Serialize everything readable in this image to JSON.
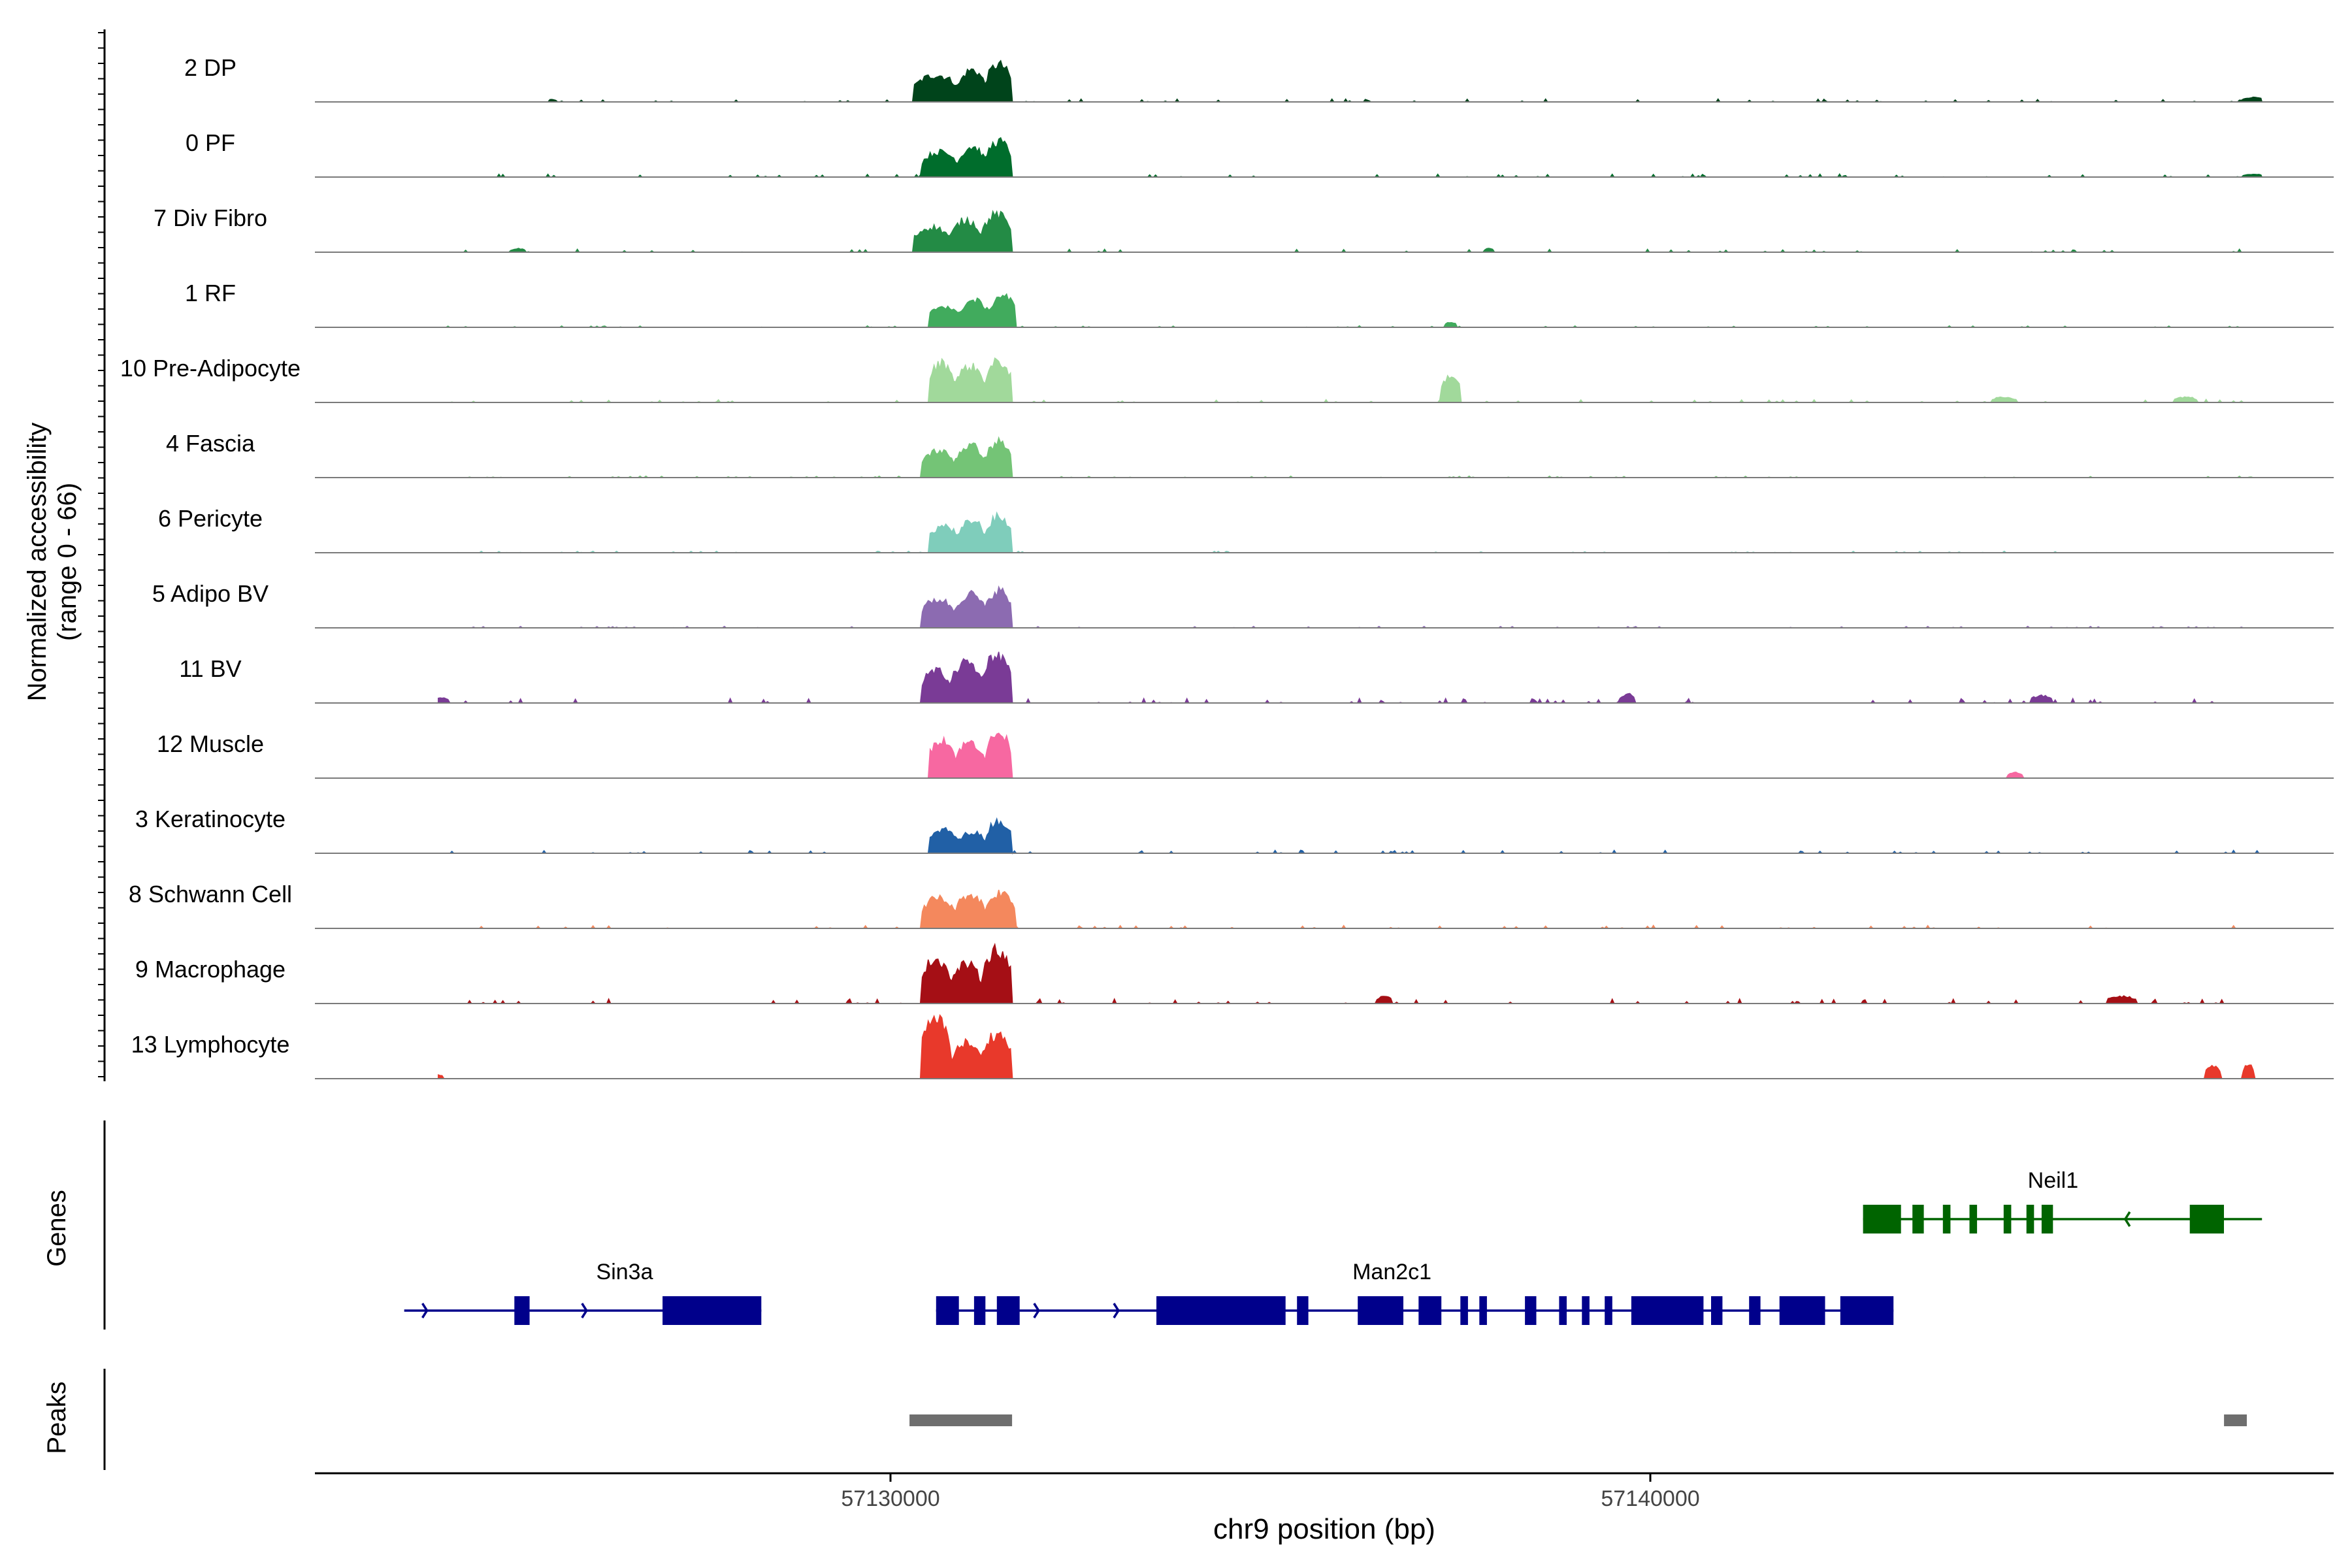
{
  "chart_data": {
    "type": "area",
    "title": "",
    "region_chromosome": "chr9",
    "x_range": [
      57122500,
      57148500
    ],
    "xlabel": "chr9 position (bp)",
    "x_ticks": [
      57130000,
      57140000
    ],
    "x_tick_labels": [
      "57130000",
      "57140000"
    ],
    "ylabel_line1": "Normalized accessibility",
    "ylabel_line2": "(range 0 - 66)",
    "y_range": [
      0,
      66
    ],
    "tracks": [
      {
        "name": "2 DP",
        "color": "#00441b",
        "baseline": 2,
        "peaks": [
          [
            57130300,
            57130900,
            30
          ],
          [
            57130900,
            57131250,
            36
          ],
          [
            57131250,
            57131600,
            42
          ],
          [
            57125500,
            57125600,
            3
          ],
          [
            57147800,
            57148100,
            5
          ]
        ]
      },
      {
        "name": "0 PF",
        "color": "#006d2c",
        "baseline": 2,
        "peaks": [
          [
            57130400,
            57130900,
            28
          ],
          [
            57130900,
            57131250,
            34
          ],
          [
            57131250,
            57131600,
            40
          ],
          [
            57147800,
            57148100,
            3
          ]
        ]
      },
      {
        "name": "7 Div Fibro",
        "color": "#238b45",
        "baseline": 2,
        "peaks": [
          [
            57130300,
            57130800,
            28
          ],
          [
            57130800,
            57131200,
            36
          ],
          [
            57131200,
            57131600,
            42
          ],
          [
            57125000,
            57125200,
            4
          ],
          [
            57137800,
            57137950,
            4
          ]
        ]
      },
      {
        "name": "1 RF",
        "color": "#41ab5d",
        "baseline": 1,
        "peaks": [
          [
            57130500,
            57130900,
            24
          ],
          [
            57130900,
            57131300,
            30
          ],
          [
            57131300,
            57131650,
            36
          ],
          [
            57137300,
            57137450,
            6
          ]
        ]
      },
      {
        "name": "10 Pre-Adipocyte",
        "color": "#a1d99b",
        "baseline": 2,
        "peaks": [
          [
            57130500,
            57130850,
            44
          ],
          [
            57130850,
            57131250,
            40
          ],
          [
            57131250,
            57131600,
            46
          ],
          [
            57137250,
            57137500,
            30
          ],
          [
            57144500,
            57144800,
            6
          ],
          [
            57146900,
            57147200,
            6
          ]
        ]
      },
      {
        "name": "4 Fascia",
        "color": "#74c476",
        "baseline": 1,
        "peaks": [
          [
            57130400,
            57130850,
            30
          ],
          [
            57130850,
            57131250,
            36
          ],
          [
            57131250,
            57131600,
            40
          ]
        ]
      },
      {
        "name": "6 Pericyte",
        "color": "#7fcdbb",
        "baseline": 1,
        "peaks": [
          [
            57130500,
            57130900,
            30
          ],
          [
            57130900,
            57131250,
            36
          ],
          [
            57131250,
            57131600,
            40
          ]
        ]
      },
      {
        "name": "5 Adipo BV",
        "color": "#8c6bb1",
        "baseline": 1,
        "peaks": [
          [
            57130400,
            57130850,
            32
          ],
          [
            57130850,
            57131250,
            38
          ],
          [
            57131250,
            57131600,
            42
          ]
        ]
      },
      {
        "name": "11 BV",
        "color": "#7a3b96",
        "baseline": 3,
        "peaks": [
          [
            57130400,
            57130800,
            36
          ],
          [
            57130800,
            57131200,
            46
          ],
          [
            57131200,
            57131600,
            54
          ],
          [
            57124000,
            57124200,
            6
          ],
          [
            57139600,
            57139800,
            10
          ],
          [
            57145000,
            57145300,
            8
          ]
        ]
      },
      {
        "name": "12 Muscle",
        "color": "#f768a1",
        "baseline": 0,
        "peaks": [
          [
            57130500,
            57130850,
            44
          ],
          [
            57130850,
            57131250,
            40
          ],
          [
            57131250,
            57131600,
            50
          ],
          [
            57144700,
            57144900,
            6
          ]
        ]
      },
      {
        "name": "3 Keratinocyte",
        "color": "#2160a6",
        "baseline": 2,
        "peaks": [
          [
            57130500,
            57130900,
            26
          ],
          [
            57130900,
            57131250,
            24
          ],
          [
            57131250,
            57131600,
            36
          ]
        ]
      },
      {
        "name": "8 Schwann Cell",
        "color": "#f4885d",
        "baseline": 2,
        "peaks": [
          [
            57130400,
            57130850,
            34
          ],
          [
            57130850,
            57131250,
            38
          ],
          [
            57131250,
            57131650,
            40
          ]
        ]
      },
      {
        "name": "9 Macrophage",
        "color": "#a50f15",
        "baseline": 3,
        "peaks": [
          [
            57130400,
            57130800,
            50
          ],
          [
            57130800,
            57131200,
            44
          ],
          [
            57131200,
            57131600,
            60
          ],
          [
            57136400,
            57136600,
            8
          ],
          [
            57146000,
            57146400,
            8
          ]
        ]
      },
      {
        "name": "13 Lymphocyte",
        "color": "#e8392b",
        "baseline": 0,
        "peaks": [
          [
            57130400,
            57130800,
            66
          ],
          [
            57130800,
            57131200,
            40
          ],
          [
            57131200,
            57131600,
            50
          ],
          [
            57123800,
            57124100,
            6
          ],
          [
            57147300,
            57147500,
            14
          ],
          [
            57147800,
            57147950,
            16
          ]
        ]
      }
    ],
    "genes_label": "Genes",
    "genes": [
      {
        "name": "Sin3a",
        "strand": "+",
        "start": 57123600,
        "end": 57128300,
        "color": "#00008b",
        "row": 2,
        "label_x": 57126500,
        "exons": [
          [
            57125050,
            57125250
          ],
          [
            57127000,
            57128300
          ]
        ]
      },
      {
        "name": "Man2c1",
        "strand": "+",
        "start": 57130600,
        "end": 57143200,
        "color": "#00008b",
        "row": 2,
        "label_x": 57136600,
        "exons": [
          [
            57130600,
            57130900
          ],
          [
            57131100,
            57131250
          ],
          [
            57131400,
            57131700
          ],
          [
            57133500,
            57135200
          ],
          [
            57135350,
            57135500
          ],
          [
            57136150,
            57136750
          ],
          [
            57136950,
            57137250
          ],
          [
            57137500,
            57137600
          ],
          [
            57137750,
            57137850
          ],
          [
            57138350,
            57138500
          ],
          [
            57138800,
            57138900
          ],
          [
            57139100,
            57139200
          ],
          [
            57139400,
            57139500
          ],
          [
            57139750,
            57140700
          ],
          [
            57140800,
            57140950
          ],
          [
            57141300,
            57141450
          ],
          [
            57141700,
            57142300
          ],
          [
            57142500,
            57143200
          ]
        ]
      },
      {
        "name": "Neil1",
        "strand": "-",
        "start": 57142800,
        "end": 57148050,
        "color": "#006400",
        "row": 1,
        "label_x": 57145300,
        "exons": [
          [
            57142800,
            57143300
          ],
          [
            57143450,
            57143600
          ],
          [
            57143850,
            57143950
          ],
          [
            57144200,
            57144300
          ],
          [
            57144650,
            57144750
          ],
          [
            57144950,
            57145050
          ],
          [
            57145150,
            57145300
          ],
          [
            57147100,
            57147550
          ]
        ]
      }
    ],
    "peaks_label": "Peaks",
    "peak_regions": [
      [
        57130250,
        57131600
      ],
      [
        57147550,
        57147850
      ]
    ]
  }
}
